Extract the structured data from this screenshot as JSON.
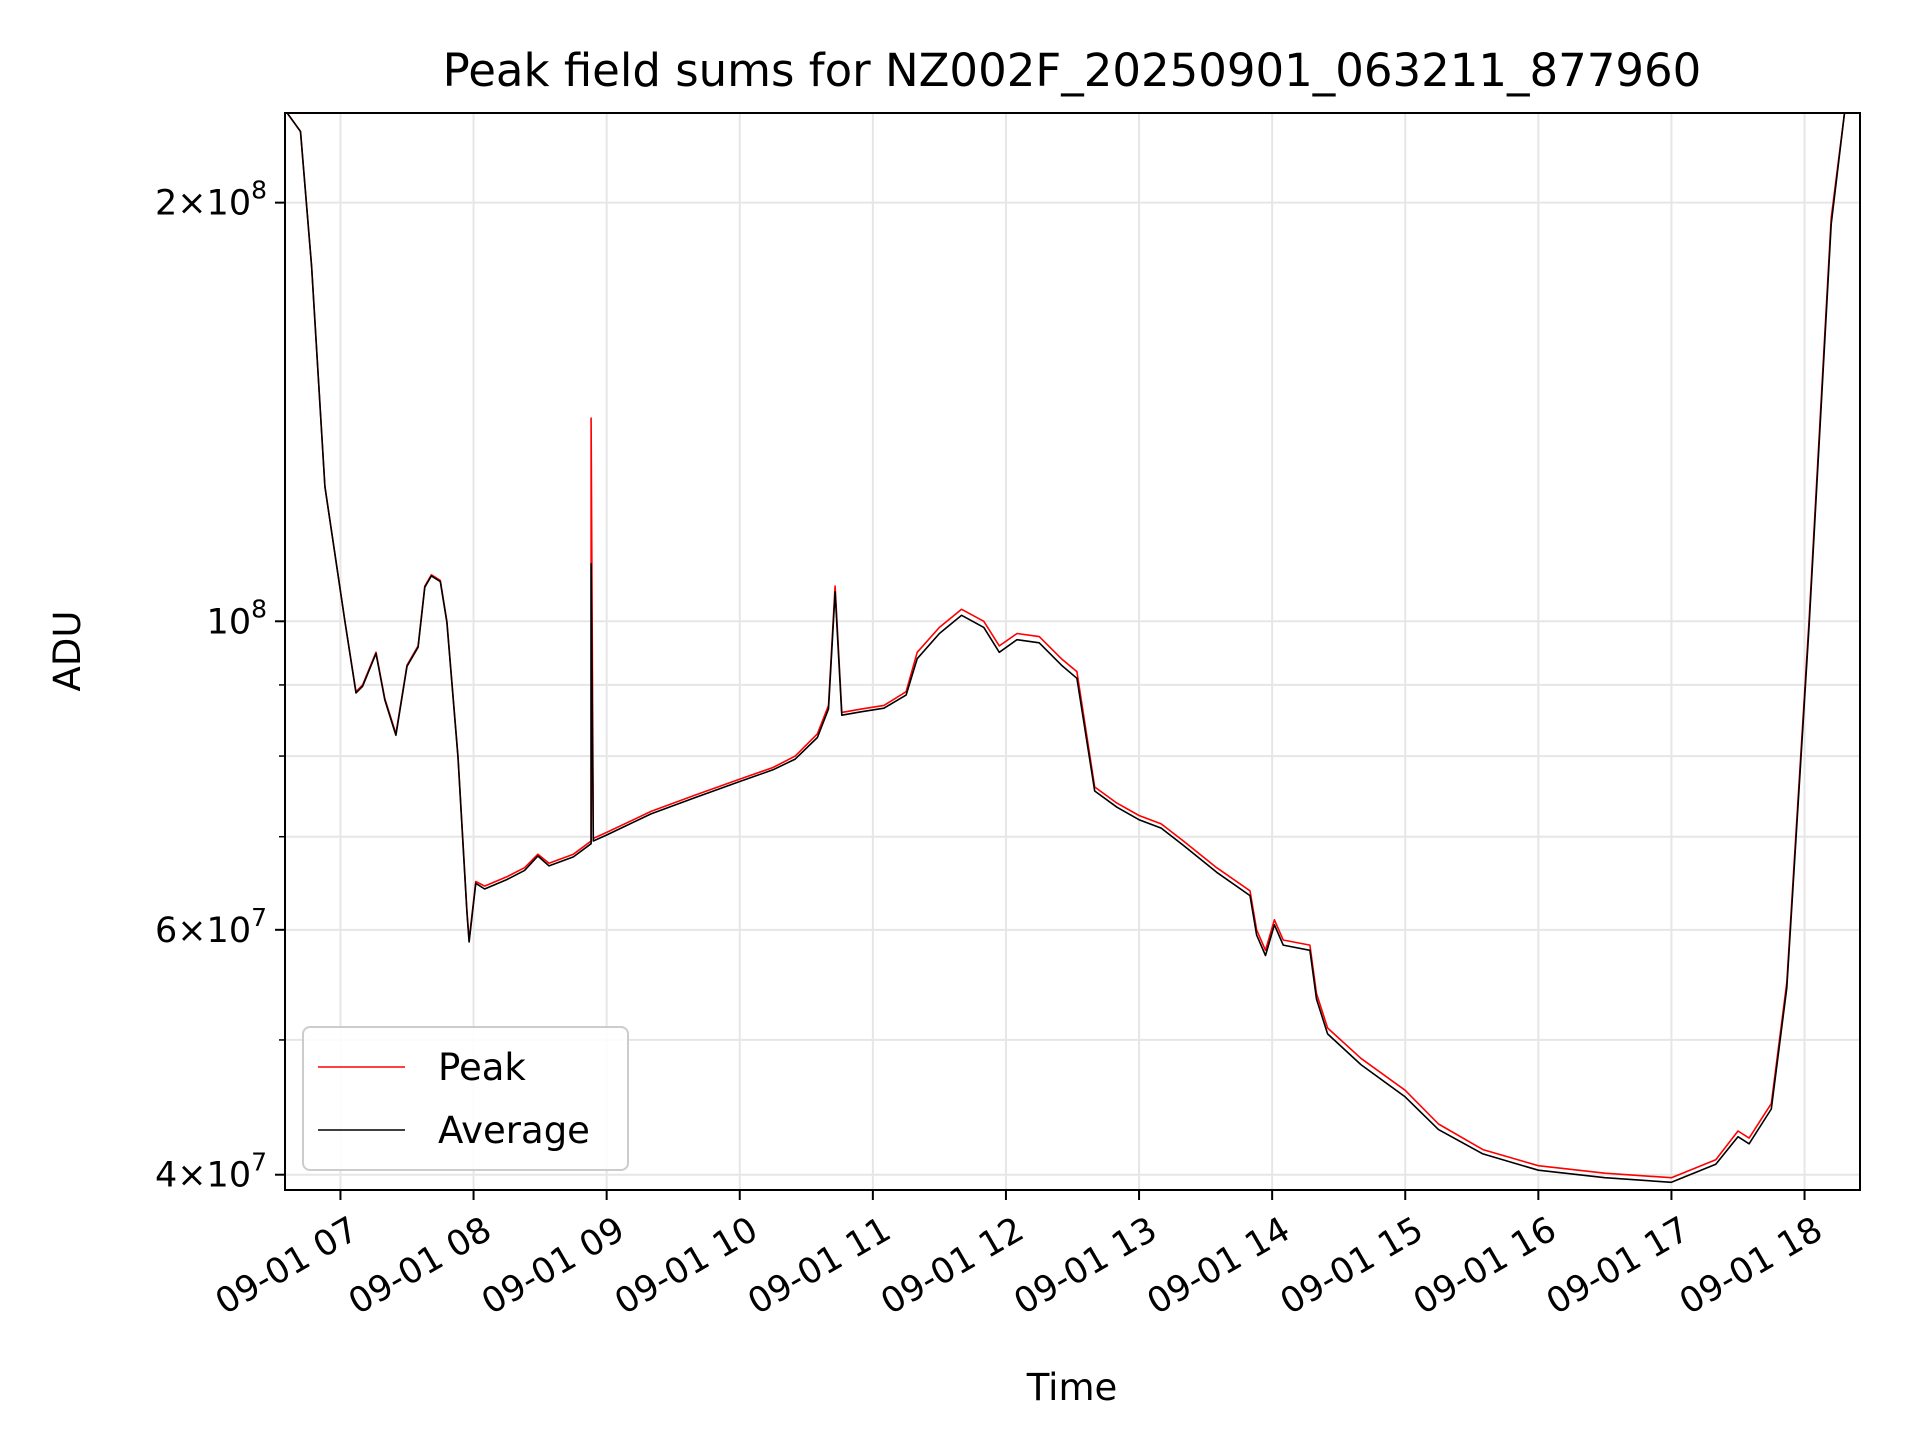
{
  "chart_data": {
    "type": "line",
    "title": "Peak field sums for NZ002F_20250901_063211_877960",
    "xlabel": "Time",
    "ylabel": "ADU",
    "y_scale": "log",
    "ylim": [
      39000000,
      232000000
    ],
    "xlim": [
      "09-01 06:35",
      "09-01 18:25"
    ],
    "grid": true,
    "legend_position": "lower-left",
    "x_ticks": [
      "09-01 07",
      "09-01 08",
      "09-01 09",
      "09-01 10",
      "09-01 11",
      "09-01 12",
      "09-01 13",
      "09-01 14",
      "09-01 15",
      "09-01 16",
      "09-01 17",
      "09-01 18"
    ],
    "y_major_ticks": [
      {
        "value": 40000000,
        "base": "4",
        "exp": "7"
      },
      {
        "value": 60000000,
        "base": "6",
        "exp": "7"
      },
      {
        "value": 100000000,
        "base": "",
        "exp": "8"
      },
      {
        "value": 200000000,
        "base": "2",
        "exp": "8"
      }
    ],
    "y_minor_ticks": [
      50000000,
      70000000,
      80000000,
      90000000
    ],
    "colors": {
      "peak": "#ff0000",
      "average": "#000000",
      "grid": "#e6e6e6"
    },
    "series": [
      {
        "name": "Peak",
        "color": "#ff0000",
        "points": [
          [
            "09-01 06:36",
            232000000
          ],
          [
            "09-01 06:42",
            225000000
          ],
          [
            "09-01 06:47",
            180000000
          ],
          [
            "09-01 06:53",
            125000000
          ],
          [
            "09-01 07:02",
            100000000
          ],
          [
            "09-01 07:07",
            89000000
          ],
          [
            "09-01 07:10",
            90000000
          ],
          [
            "09-01 07:16",
            95000000
          ],
          [
            "09-01 07:20",
            88000000
          ],
          [
            "09-01 07:25",
            83000000
          ],
          [
            "09-01 07:30",
            93000000
          ],
          [
            "09-01 07:35",
            96000000
          ],
          [
            "09-01 07:38",
            106000000
          ],
          [
            "09-01 07:41",
            108000000
          ],
          [
            "09-01 07:45",
            107000000
          ],
          [
            "09-01 07:48",
            100000000
          ],
          [
            "09-01 07:53",
            80000000
          ],
          [
            "09-01 07:57",
            62000000
          ],
          [
            "09-01 07:58",
            59000000
          ],
          [
            "09-01 08:01",
            65000000
          ],
          [
            "09-01 08:05",
            64500000
          ],
          [
            "09-01 08:15",
            65500000
          ],
          [
            "09-01 08:23",
            66500000
          ],
          [
            "09-01 08:29",
            68000000
          ],
          [
            "09-01 08:34",
            67000000
          ],
          [
            "09-01 08:45",
            68000000
          ],
          [
            "09-01 08:53",
            69500000
          ],
          [
            "09-01 08:53",
            140000000
          ],
          [
            "09-01 08:54",
            69800000
          ],
          [
            "09-01 09:00",
            70500000
          ],
          [
            "09-01 09:20",
            73000000
          ],
          [
            "09-01 09:40",
            75000000
          ],
          [
            "09-01 10:00",
            77000000
          ],
          [
            "09-01 10:15",
            78500000
          ],
          [
            "09-01 10:25",
            80000000
          ],
          [
            "09-01 10:35",
            83000000
          ],
          [
            "09-01 10:40",
            87000000
          ],
          [
            "09-01 10:43",
            106000000
          ],
          [
            "09-01 10:46",
            86000000
          ],
          [
            "09-01 10:55",
            86500000
          ],
          [
            "09-01 11:05",
            87000000
          ],
          [
            "09-01 11:15",
            89000000
          ],
          [
            "09-01 11:20",
            95000000
          ],
          [
            "09-01 11:30",
            99000000
          ],
          [
            "09-01 11:40",
            102000000
          ],
          [
            "09-01 11:50",
            100000000
          ],
          [
            "09-01 11:57",
            96000000
          ],
          [
            "09-01 12:05",
            98000000
          ],
          [
            "09-01 12:15",
            97500000
          ],
          [
            "09-01 12:25",
            94000000
          ],
          [
            "09-01 12:32",
            92000000
          ],
          [
            "09-01 12:40",
            76000000
          ],
          [
            "09-01 12:50",
            74000000
          ],
          [
            "09-01 13:00",
            72500000
          ],
          [
            "09-01 13:10",
            71500000
          ],
          [
            "09-01 13:20",
            69500000
          ],
          [
            "09-01 13:35",
            66500000
          ],
          [
            "09-01 13:50",
            64000000
          ],
          [
            "09-01 13:53",
            60000000
          ],
          [
            "09-01 13:57",
            58000000
          ],
          [
            "09-01 14:01",
            61000000
          ],
          [
            "09-01 14:05",
            59000000
          ],
          [
            "09-01 14:17",
            58500000
          ],
          [
            "09-01 14:20",
            54000000
          ],
          [
            "09-01 14:25",
            51000000
          ],
          [
            "09-01 14:40",
            48500000
          ],
          [
            "09-01 15:00",
            46000000
          ],
          [
            "09-01 15:15",
            43500000
          ],
          [
            "09-01 15:35",
            41700000
          ],
          [
            "09-01 16:00",
            40600000
          ],
          [
            "09-01 16:30",
            40100000
          ],
          [
            "09-01 17:00",
            39800000
          ],
          [
            "09-01 17:20",
            41000000
          ],
          [
            "09-01 17:30",
            43000000
          ],
          [
            "09-01 17:35",
            42500000
          ],
          [
            "09-01 17:45",
            45000000
          ],
          [
            "09-01 17:52",
            55000000
          ],
          [
            "09-01 18:02",
            100000000
          ],
          [
            "09-01 18:12",
            195000000
          ],
          [
            "09-01 18:18",
            232000000
          ],
          [
            "09-01 18:25",
            232000000
          ]
        ]
      },
      {
        "name": "Average",
        "color": "#000000",
        "points": [
          [
            "09-01 06:36",
            232000000
          ],
          [
            "09-01 06:42",
            225000000
          ],
          [
            "09-01 06:47",
            180000000
          ],
          [
            "09-01 06:53",
            125000000
          ],
          [
            "09-01 07:02",
            100000000
          ],
          [
            "09-01 07:07",
            88800000
          ],
          [
            "09-01 07:10",
            89800000
          ],
          [
            "09-01 07:16",
            94800000
          ],
          [
            "09-01 07:20",
            87800000
          ],
          [
            "09-01 07:25",
            82800000
          ],
          [
            "09-01 07:30",
            92800000
          ],
          [
            "09-01 07:35",
            95800000
          ],
          [
            "09-01 07:38",
            105800000
          ],
          [
            "09-01 07:41",
            107800000
          ],
          [
            "09-01 07:45",
            106800000
          ],
          [
            "09-01 07:48",
            99800000
          ],
          [
            "09-01 07:53",
            79800000
          ],
          [
            "09-01 07:57",
            61800000
          ],
          [
            "09-01 07:58",
            58800000
          ],
          [
            "09-01 08:01",
            64800000
          ],
          [
            "09-01 08:05",
            64200000
          ],
          [
            "09-01 08:15",
            65200000
          ],
          [
            "09-01 08:23",
            66200000
          ],
          [
            "09-01 08:29",
            67800000
          ],
          [
            "09-01 08:34",
            66700000
          ],
          [
            "09-01 08:45",
            67700000
          ],
          [
            "09-01 08:53",
            69200000
          ],
          [
            "09-01 08:53",
            110000000
          ],
          [
            "09-01 08:54",
            69500000
          ],
          [
            "09-01 09:00",
            70200000
          ],
          [
            "09-01 09:20",
            72700000
          ],
          [
            "09-01 09:40",
            74700000
          ],
          [
            "09-01 10:00",
            76700000
          ],
          [
            "09-01 10:15",
            78200000
          ],
          [
            "09-01 10:25",
            79600000
          ],
          [
            "09-01 10:35",
            82500000
          ],
          [
            "09-01 10:40",
            86500000
          ],
          [
            "09-01 10:43",
            105000000
          ],
          [
            "09-01 10:46",
            85600000
          ],
          [
            "09-01 10:55",
            86100000
          ],
          [
            "09-01 11:05",
            86600000
          ],
          [
            "09-01 11:15",
            88500000
          ],
          [
            "09-01 11:20",
            94000000
          ],
          [
            "09-01 11:30",
            98000000
          ],
          [
            "09-01 11:40",
            101000000
          ],
          [
            "09-01 11:50",
            99000000
          ],
          [
            "09-01 11:57",
            95000000
          ],
          [
            "09-01 12:05",
            97000000
          ],
          [
            "09-01 12:15",
            96500000
          ],
          [
            "09-01 12:25",
            93000000
          ],
          [
            "09-01 12:32",
            91000000
          ],
          [
            "09-01 12:40",
            75500000
          ],
          [
            "09-01 12:50",
            73500000
          ],
          [
            "09-01 13:00",
            72000000
          ],
          [
            "09-01 13:10",
            71000000
          ],
          [
            "09-01 13:20",
            69000000
          ],
          [
            "09-01 13:35",
            66000000
          ],
          [
            "09-01 13:50",
            63500000
          ],
          [
            "09-01 13:53",
            59500000
          ],
          [
            "09-01 13:57",
            57500000
          ],
          [
            "09-01 14:01",
            60500000
          ],
          [
            "09-01 14:05",
            58500000
          ],
          [
            "09-01 14:17",
            58000000
          ],
          [
            "09-01 14:20",
            53500000
          ],
          [
            "09-01 14:25",
            50500000
          ],
          [
            "09-01 14:40",
            48000000
          ],
          [
            "09-01 15:00",
            45500000
          ],
          [
            "09-01 15:15",
            43100000
          ],
          [
            "09-01 15:35",
            41400000
          ],
          [
            "09-01 16:00",
            40300000
          ],
          [
            "09-01 16:30",
            39800000
          ],
          [
            "09-01 17:00",
            39500000
          ],
          [
            "09-01 17:20",
            40700000
          ],
          [
            "09-01 17:30",
            42600000
          ],
          [
            "09-01 17:35",
            42100000
          ],
          [
            "09-01 17:45",
            44600000
          ],
          [
            "09-01 17:52",
            54500000
          ],
          [
            "09-01 18:02",
            99000000
          ],
          [
            "09-01 18:12",
            193000000
          ],
          [
            "09-01 18:18",
            232000000
          ],
          [
            "09-01 18:25",
            232000000
          ]
        ]
      }
    ]
  }
}
